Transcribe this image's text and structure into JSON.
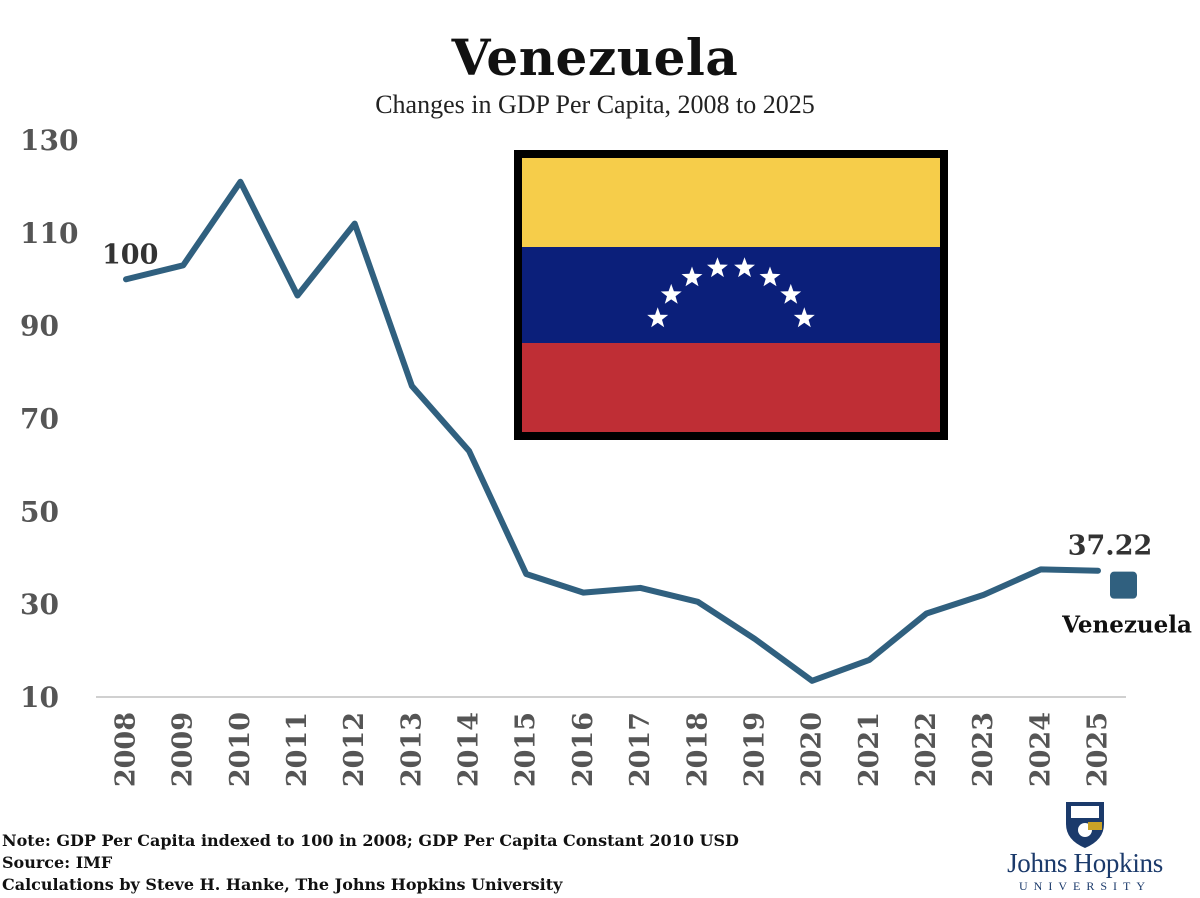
{
  "header": {
    "title": "Venezuela",
    "subtitle": "Changes in GDP Per Capita, 2008 to 2025"
  },
  "notes": {
    "line1": "Note: GDP Per Capita indexed to 100 in 2008; GDP Per Capita Constant 2010 USD",
    "line2": "Source: IMF",
    "line3": "Calculations by Steve H. Hanke, The Johns Hopkins University"
  },
  "logo": {
    "name": "Johns Hopkins",
    "subname": "UNIVERSITY"
  },
  "flag": {
    "colors": [
      "#f6cd4a",
      "#0b1f7a",
      "#bf2e35"
    ],
    "star_color": "#ffffff"
  },
  "colors": {
    "line": "#30607f",
    "axis_text": "#555555",
    "baseline": "#d0d0d0"
  },
  "chart_data": {
    "type": "line",
    "x": [
      "2008",
      "2009",
      "2010",
      "2011",
      "2012",
      "2013",
      "2014",
      "2015",
      "2016",
      "2017",
      "2018",
      "2019",
      "2020",
      "2021",
      "2022",
      "2023",
      "2024",
      "2025"
    ],
    "series": [
      {
        "name": "Venezuela",
        "values": [
          100,
          103,
          121,
          96.5,
          112,
          77,
          63,
          36.5,
          32.5,
          33.5,
          30.5,
          22.5,
          13.5,
          18,
          28,
          32,
          37.5,
          37.22
        ]
      }
    ],
    "yticks": [
      10,
      30,
      50,
      70,
      90,
      110,
      130
    ],
    "ylim": [
      10,
      130
    ],
    "annotations": [
      {
        "label": "100",
        "x": "2008",
        "y": 100
      },
      {
        "label": "37.22",
        "x": "2025",
        "y": 37.22
      }
    ],
    "grid": false,
    "legend": "right"
  }
}
